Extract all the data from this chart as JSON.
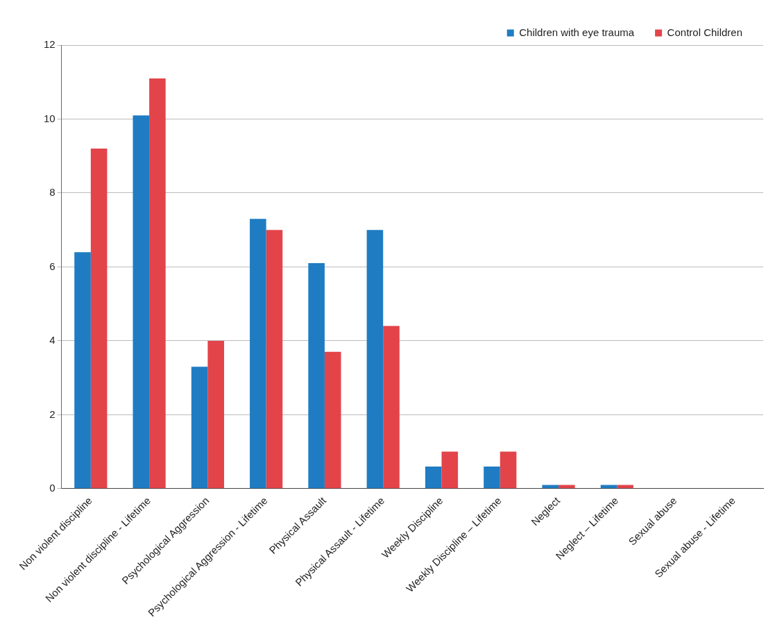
{
  "chart_data": {
    "type": "bar",
    "categories": [
      "Non violent discipline",
      "Non violent discipline - Lifetime",
      "Psychological Aggression",
      "Psychological Aggression - Lifetime",
      "Physical Assault",
      "Physical Assault - Lifetime",
      "Weekly Discipline",
      "Weekly Discipline – Lifetime",
      "Neglect",
      "Neglect – Lifetime",
      "Sexual abuse",
      "Sexual abuse - Lifetime"
    ],
    "series": [
      {
        "name": "Children with eye trauma",
        "color": "#1f7cc2",
        "values": [
          6.4,
          10.1,
          3.3,
          7.3,
          6.1,
          7.0,
          0.6,
          0.6,
          0.1,
          0.1,
          0,
          0
        ]
      },
      {
        "name": "Control Children",
        "color": "#e2444a",
        "values": [
          9.2,
          11.1,
          4.0,
          7.0,
          3.7,
          4.4,
          1.0,
          1.0,
          0.1,
          0.1,
          0,
          0
        ]
      }
    ],
    "ylim": [
      0,
      12
    ],
    "yticks": [
      0,
      2,
      4,
      6,
      8,
      10,
      12
    ],
    "grid": "y",
    "legend": "top right"
  }
}
